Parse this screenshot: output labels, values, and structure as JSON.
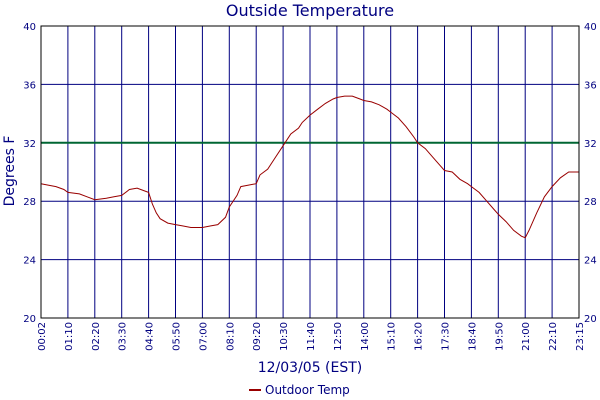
{
  "chart_data": {
    "type": "line",
    "title": "Outside Temperature",
    "xlabel": "12/03/05 (EST)",
    "ylabel": "Degrees F",
    "ylim": [
      20,
      40
    ],
    "yticks": [
      20,
      24,
      28,
      32,
      36,
      40
    ],
    "xticks": [
      "00:02",
      "01:10",
      "02:20",
      "03:30",
      "04:40",
      "05:50",
      "07:00",
      "08:10",
      "09:20",
      "10:30",
      "11:40",
      "12:50",
      "14:00",
      "15:10",
      "16:20",
      "17:30",
      "18:40",
      "19:50",
      "21:00",
      "22:10",
      "23:15"
    ],
    "grid": true,
    "reference_line": {
      "y": 32,
      "color": "#006633"
    },
    "legend_position": "bottom-center",
    "series": [
      {
        "name": "Outdoor Temp",
        "color": "#990000",
        "x": [
          "00:02",
          "00:20",
          "00:40",
          "01:00",
          "01:10",
          "01:40",
          "02:00",
          "02:20",
          "02:50",
          "03:10",
          "03:30",
          "03:50",
          "04:10",
          "04:30",
          "04:40",
          "04:50",
          "05:00",
          "05:10",
          "05:30",
          "05:50",
          "06:10",
          "06:30",
          "07:00",
          "07:20",
          "07:40",
          "08:00",
          "08:10",
          "08:30",
          "08:40",
          "09:00",
          "09:20",
          "09:30",
          "09:50",
          "10:10",
          "10:30",
          "10:50",
          "11:10",
          "11:20",
          "11:40",
          "12:00",
          "12:20",
          "12:40",
          "12:50",
          "13:10",
          "13:30",
          "13:50",
          "14:00",
          "14:20",
          "14:40",
          "15:00",
          "15:10",
          "15:30",
          "15:50",
          "16:10",
          "16:20",
          "16:40",
          "17:00",
          "17:20",
          "17:30",
          "17:50",
          "18:10",
          "18:30",
          "18:40",
          "19:00",
          "19:20",
          "19:40",
          "19:50",
          "20:10",
          "20:30",
          "20:50",
          "21:00",
          "21:10",
          "21:30",
          "21:50",
          "22:10",
          "22:30",
          "22:50",
          "23:15"
        ],
        "values": [
          29.2,
          29.1,
          29.0,
          28.8,
          28.6,
          28.5,
          28.3,
          28.1,
          28.2,
          28.3,
          28.4,
          28.8,
          28.9,
          28.7,
          28.6,
          27.8,
          27.2,
          26.8,
          26.5,
          26.4,
          26.3,
          26.2,
          26.2,
          26.3,
          26.4,
          26.9,
          27.6,
          28.4,
          29.0,
          29.1,
          29.2,
          29.8,
          30.2,
          31.0,
          31.8,
          32.6,
          33.0,
          33.4,
          33.9,
          34.3,
          34.7,
          35.0,
          35.1,
          35.2,
          35.2,
          35.0,
          34.9,
          34.8,
          34.6,
          34.3,
          34.1,
          33.7,
          33.1,
          32.4,
          32.0,
          31.6,
          31.0,
          30.4,
          30.1,
          30.0,
          29.5,
          29.2,
          29.0,
          28.6,
          28.0,
          27.4,
          27.1,
          26.6,
          26.0,
          25.6,
          25.5,
          26.0,
          27.2,
          28.3,
          29.0,
          29.6,
          30.0,
          30.0
        ]
      }
    ]
  }
}
